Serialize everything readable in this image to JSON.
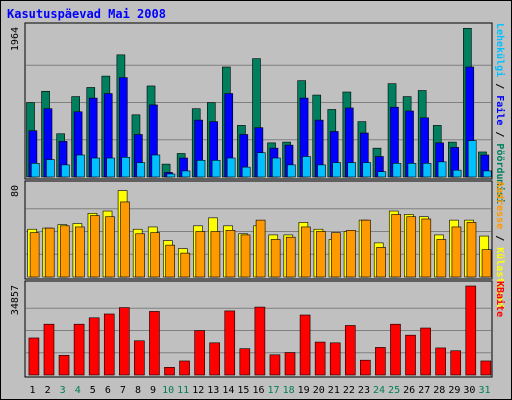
{
  "title": "Kasutuspäevad Mai 2008",
  "colors": {
    "background": "#c0c0c0",
    "grid": "#808080",
    "weekday_label": "#000000",
    "weekend_label": "#007f4f",
    "pages": "#007f5f",
    "files": "#0000ff",
    "hits": "#00c0ff",
    "visits": "#ffff00",
    "sites": "#ff9900",
    "kbytes": "#ff0000"
  },
  "days": [
    "1",
    "2",
    "3",
    "4",
    "5",
    "6",
    "7",
    "8",
    "9",
    "10",
    "11",
    "12",
    "13",
    "14",
    "15",
    "16",
    "17",
    "18",
    "19",
    "20",
    "21",
    "22",
    "23",
    "24",
    "25",
    "26",
    "27",
    "28",
    "29",
    "30",
    "31"
  ],
  "weekend_days": [
    "3",
    "4",
    "10",
    "11",
    "17",
    "18",
    "24",
    "25",
    "31"
  ],
  "chart_data": [
    {
      "type": "bar",
      "title": "Kasutuspäevad Mai 2008",
      "y_max_label": "1964",
      "ylim": [
        0,
        1964
      ],
      "grid": true,
      "legend": "right-vertical",
      "legend_items": [
        {
          "label": "Pöördumisi",
          "color": "#007f5f"
        },
        {
          "label": "Faile",
          "color": "#0000ff"
        },
        {
          "label": "Lehekülgi",
          "color": "#00c0ff"
        }
      ],
      "series": [
        {
          "name": "Pöördumisi",
          "values": [
            980,
            1130,
            570,
            1060,
            1180,
            1330,
            1610,
            820,
            1200,
            170,
            310,
            900,
            980,
            1450,
            680,
            1560,
            450,
            460,
            1270,
            1080,
            890,
            1120,
            730,
            380,
            1230,
            1060,
            1140,
            680,
            460,
            1960,
            330
          ]
        },
        {
          "name": "Faile",
          "values": [
            610,
            900,
            470,
            860,
            1040,
            1100,
            1310,
            560,
            950,
            60,
            250,
            750,
            730,
            1100,
            560,
            650,
            380,
            420,
            1040,
            750,
            600,
            910,
            580,
            270,
            920,
            870,
            780,
            450,
            390,
            1450,
            290
          ]
        },
        {
          "name": "Lehekülgi",
          "values": [
            180,
            230,
            160,
            290,
            250,
            250,
            260,
            190,
            290,
            40,
            80,
            220,
            220,
            250,
            130,
            320,
            250,
            160,
            270,
            160,
            190,
            190,
            190,
            70,
            180,
            180,
            180,
            200,
            90,
            480,
            80
          ]
        }
      ]
    },
    {
      "type": "bar",
      "y_max_label": "80",
      "ylim": [
        0,
        80
      ],
      "grid": true,
      "legend": "right-vertical",
      "legend_items": [
        {
          "label": "Külastused",
          "color": "#ffff00"
        },
        {
          "label": "Aadresse",
          "color": "#ff9900"
        }
      ],
      "series": [
        {
          "name": "Külastused",
          "values": [
            42,
            43,
            46,
            47,
            56,
            58,
            76,
            42,
            44,
            32,
            25,
            45,
            52,
            45,
            38,
            45,
            37,
            37,
            48,
            42,
            33,
            40,
            50,
            30,
            58,
            55,
            53,
            37,
            50,
            50,
            36
          ]
        },
        {
          "name": "Aadresse",
          "values": [
            39,
            43,
            45,
            44,
            54,
            53,
            66,
            38,
            39,
            28,
            21,
            40,
            40,
            41,
            37,
            50,
            33,
            35,
            44,
            40,
            39,
            41,
            50,
            26,
            55,
            53,
            51,
            33,
            44,
            48,
            24
          ]
        }
      ]
    },
    {
      "type": "bar",
      "y_max_label": "34857",
      "ylim": [
        0,
        34857
      ],
      "grid": true,
      "legend": "right-vertical",
      "legend_items": [
        {
          "label": "KBaite",
          "color": "#ff0000"
        }
      ],
      "series": [
        {
          "name": "KBaite",
          "values": [
            14500,
            19900,
            7700,
            19900,
            22400,
            23900,
            26400,
            13400,
            24900,
            3000,
            5500,
            17400,
            12600,
            25100,
            10300,
            26600,
            7900,
            8800,
            23500,
            12900,
            12600,
            19400,
            5800,
            10800,
            19900,
            15600,
            18400,
            10600,
            9500,
            34857,
            5500
          ]
        }
      ]
    }
  ]
}
